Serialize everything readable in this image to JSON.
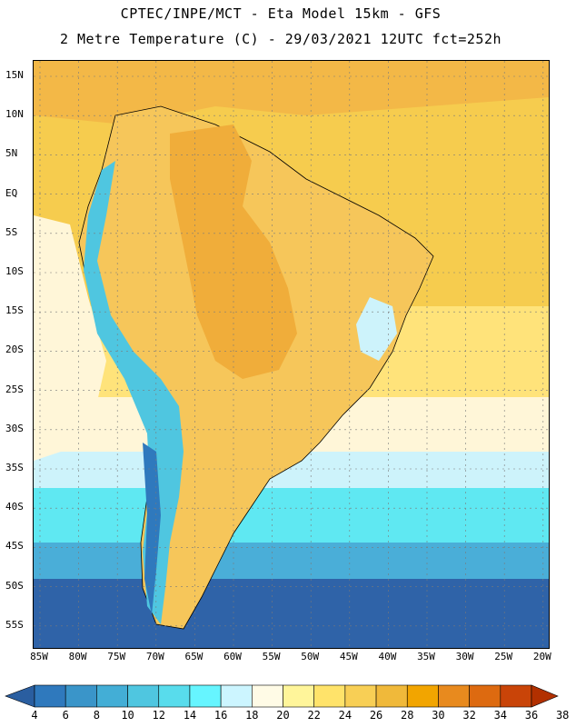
{
  "header": {
    "line1": "CPTEC/INPE/MCT -  Eta Model 15km - GFS",
    "line2": "2 Metre Temperature (C) - 29/03/2021 12UTC fct=252h"
  },
  "lat_labels": [
    "15N",
    "10N",
    "5N",
    "EQ",
    "5S",
    "10S",
    "15S",
    "20S",
    "25S",
    "30S",
    "35S",
    "40S",
    "45S",
    "50S",
    "55S"
  ],
  "lon_labels": [
    "85W",
    "80W",
    "75W",
    "70W",
    "65W",
    "60W",
    "55W",
    "50W",
    "45W",
    "40W",
    "35W",
    "30W",
    "25W",
    "20W"
  ],
  "colorbar": {
    "labels": [
      "4",
      "6",
      "8",
      "10",
      "12",
      "14",
      "16",
      "18",
      "20",
      "22",
      "24",
      "26",
      "28",
      "30",
      "32",
      "34",
      "36",
      "38"
    ],
    "colors": [
      "#2a5ea0",
      "#2f79bd",
      "#3a95c9",
      "#43aed6",
      "#4fc6e0",
      "#58dcec",
      "#66f5ff",
      "#ccf5ff",
      "#fffbe6",
      "#fff59a",
      "#ffe36a",
      "#f8cf55",
      "#f0b93a",
      "#f2a500",
      "#e88a1e",
      "#dd6a10",
      "#c94408",
      "#b23000"
    ]
  },
  "map": {
    "ocean_south_deep": "#2f63a8",
    "ocean_south_mid": "#4aaed8",
    "ocean_cyan": "#5fe8f2",
    "ocean_pale": "#cdf3fb",
    "ocean_cream": "#fff6d8",
    "ocean_yellow": "#ffe37a",
    "ocean_gold": "#f6cc4e",
    "land_hot": "#f0ad3a",
    "land_warm": "#f6c65a",
    "andes": "#4fc6e0",
    "andes_dark": "#2f79bd"
  }
}
